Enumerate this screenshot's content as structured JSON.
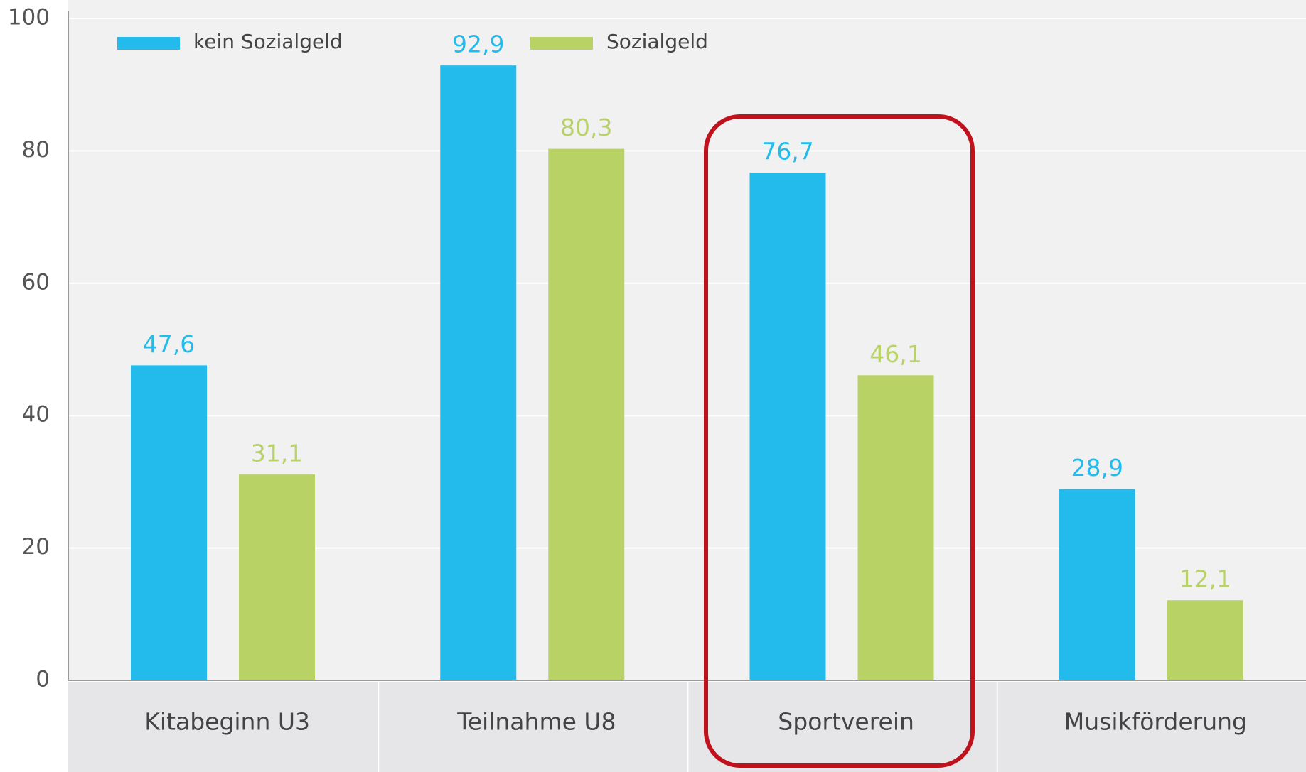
{
  "chart_data": {
    "type": "bar",
    "categories": [
      "Kitabeginn U3",
      "Teilnahme U8",
      "Sportverein",
      "Musikförderung"
    ],
    "series": [
      {
        "name": "kein Sozialgeld",
        "color": "#22bbec",
        "values": [
          47.6,
          92.9,
          76.7,
          28.9
        ],
        "value_labels": [
          "47,6",
          "92,9",
          "76,7",
          "28,9"
        ]
      },
      {
        "name": "Sozialgeld",
        "color": "#b9d266",
        "values": [
          31.1,
          80.3,
          46.1,
          12.1
        ],
        "value_labels": [
          "31,1",
          "80,3",
          "46,1",
          "12,1"
        ]
      }
    ],
    "ylim": [
      0,
      100
    ],
    "yticks": [
      0,
      20,
      40,
      60,
      80,
      100
    ],
    "grid": true
  }
}
